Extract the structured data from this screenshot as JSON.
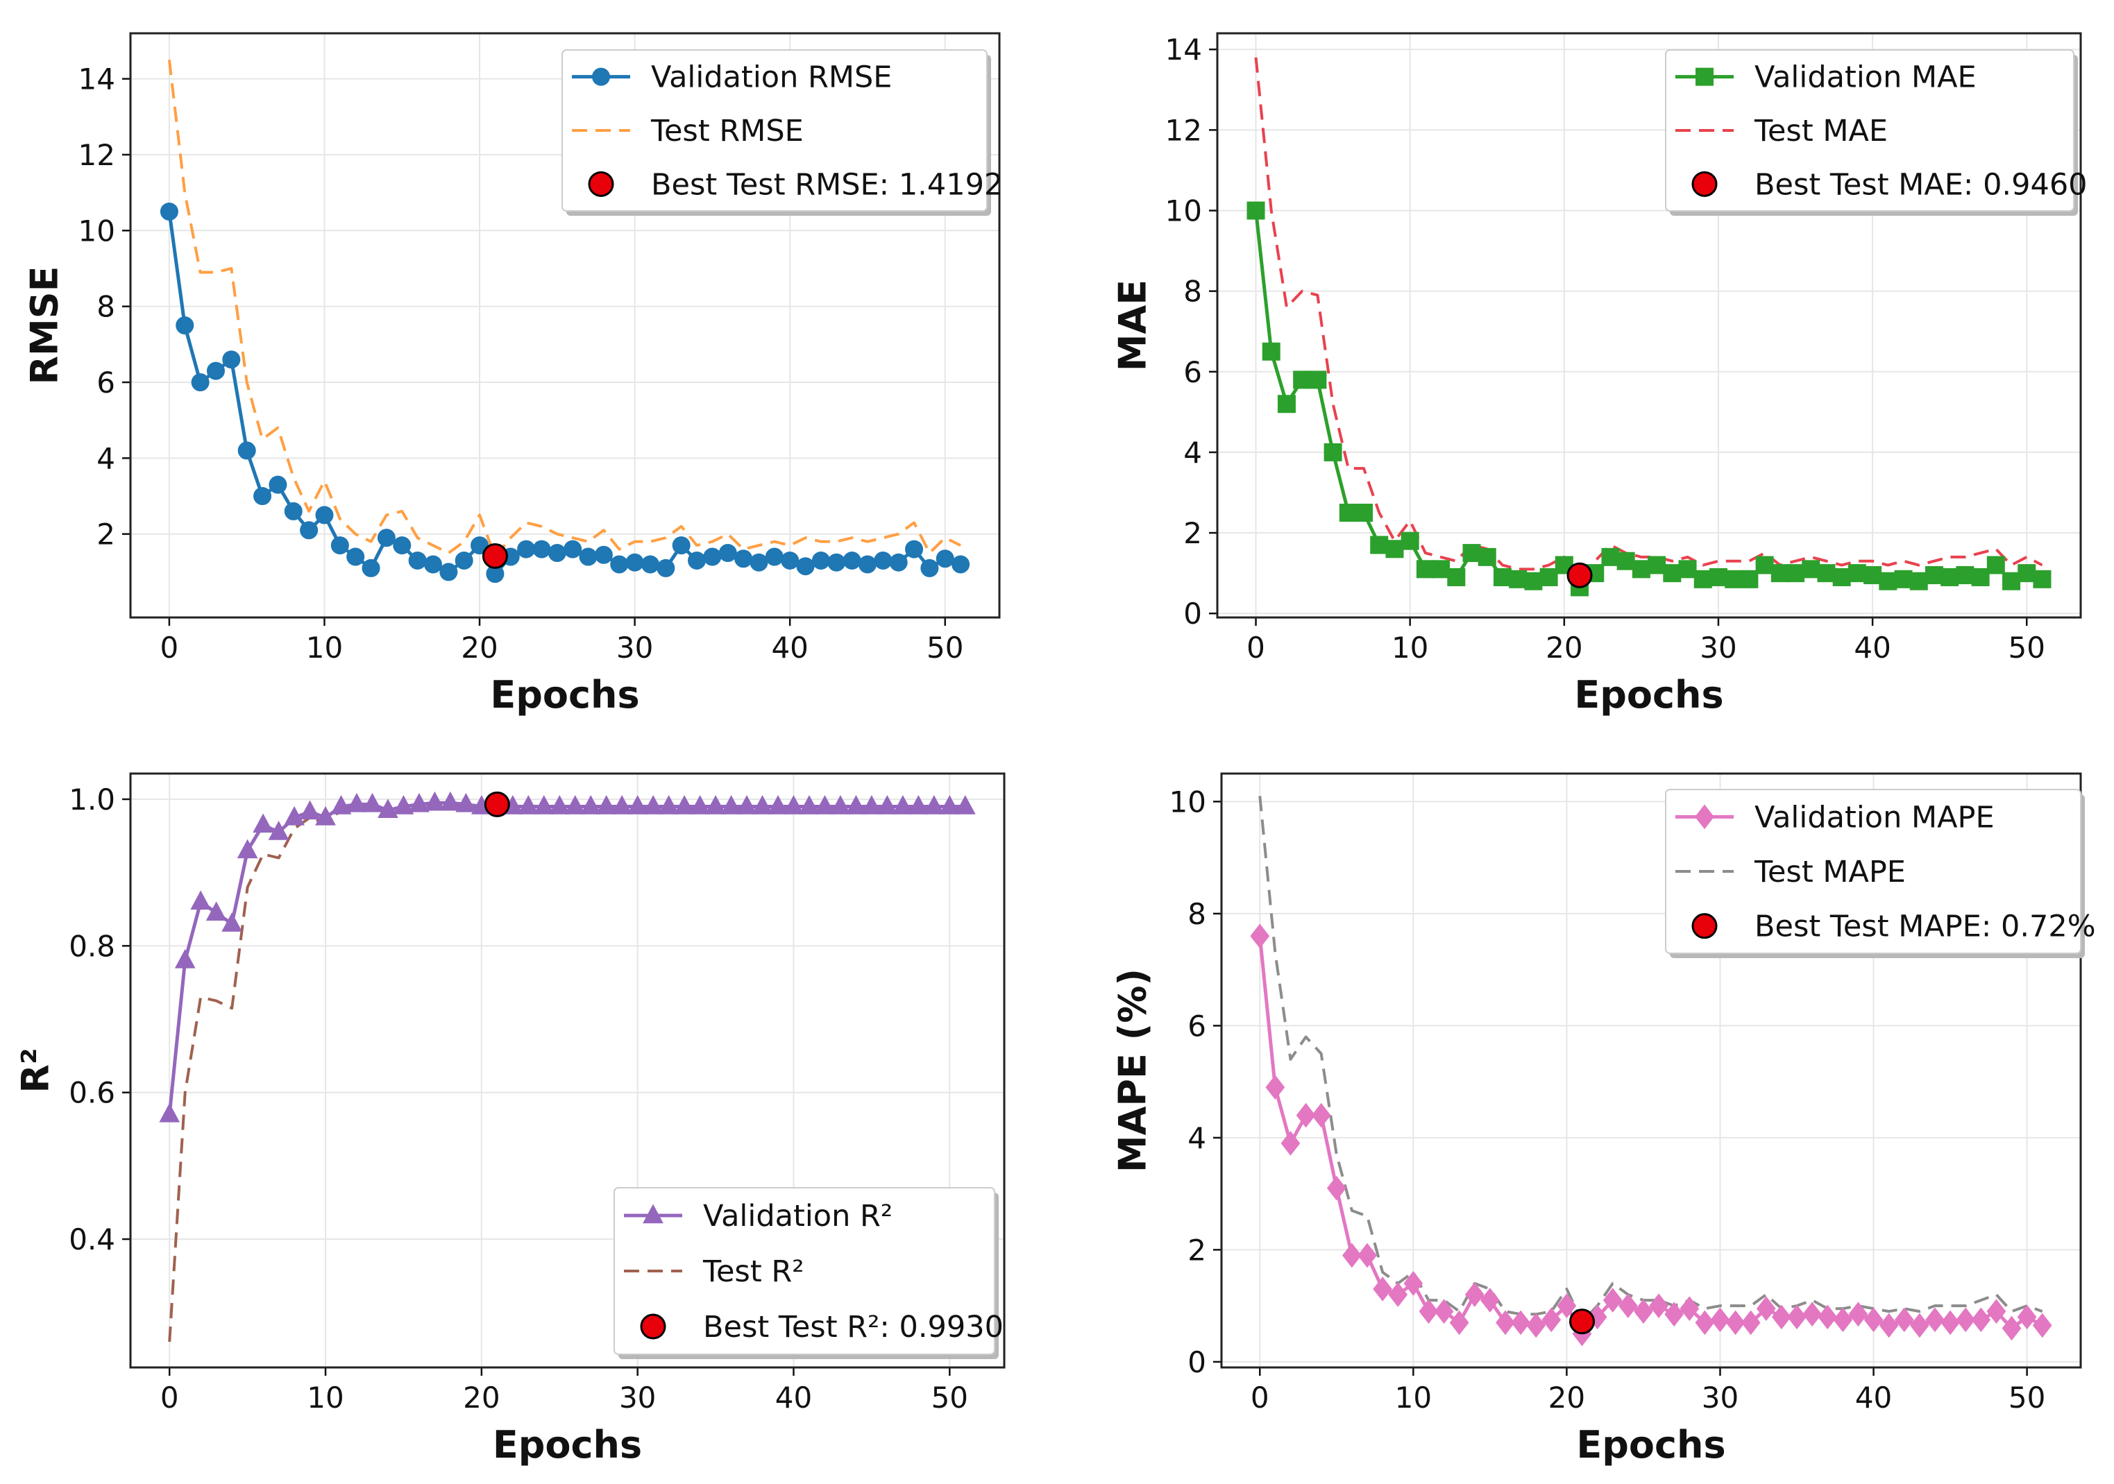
{
  "chart_data": [
    {
      "id": "rmse",
      "type": "line",
      "ylabel": "RMSE",
      "xlabel": "Epochs",
      "xlim": [
        -2.5,
        53.5
      ],
      "ylim": [
        -0.2,
        15.2
      ],
      "xticks": [
        "0",
        "10",
        "20",
        "30",
        "40",
        "50"
      ],
      "yticks": [
        "2",
        "4",
        "6",
        "8",
        "10",
        "12",
        "14"
      ],
      "grid": true,
      "legend_position": "top-right",
      "x": [
        0,
        1,
        2,
        3,
        4,
        5,
        6,
        7,
        8,
        9,
        10,
        11,
        12,
        13,
        14,
        15,
        16,
        17,
        18,
        19,
        20,
        21,
        22,
        23,
        24,
        25,
        26,
        27,
        28,
        29,
        30,
        31,
        32,
        33,
        34,
        35,
        36,
        37,
        38,
        39,
        40,
        41,
        42,
        43,
        44,
        45,
        46,
        47,
        48,
        49,
        50,
        51
      ],
      "series": [
        {
          "name": "Validation RMSE",
          "color": "#1f77b4",
          "style": "solid",
          "marker": "circle",
          "values": [
            10.5,
            7.5,
            6.0,
            6.3,
            6.6,
            4.2,
            3.0,
            3.3,
            2.6,
            2.1,
            2.5,
            1.7,
            1.4,
            1.1,
            1.9,
            1.7,
            1.3,
            1.2,
            1.0,
            1.3,
            1.7,
            0.95,
            1.4,
            1.6,
            1.6,
            1.5,
            1.6,
            1.4,
            1.45,
            1.2,
            1.25,
            1.2,
            1.1,
            1.7,
            1.3,
            1.4,
            1.5,
            1.35,
            1.25,
            1.4,
            1.3,
            1.15,
            1.3,
            1.25,
            1.3,
            1.2,
            1.3,
            1.25,
            1.6,
            1.1,
            1.35,
            1.2
          ]
        },
        {
          "name": "Test RMSE",
          "color": "#ff9f43",
          "style": "dashed",
          "marker": "none",
          "values": [
            14.5,
            11.0,
            8.9,
            8.9,
            9.0,
            6.0,
            4.5,
            4.8,
            3.5,
            2.6,
            3.4,
            2.4,
            2.0,
            1.8,
            2.5,
            2.6,
            1.9,
            1.7,
            1.5,
            1.8,
            2.5,
            1.4,
            1.9,
            2.3,
            2.2,
            2.0,
            1.9,
            1.8,
            2.1,
            1.6,
            1.8,
            1.8,
            1.9,
            2.2,
            1.7,
            1.8,
            2.0,
            1.6,
            1.7,
            1.8,
            1.7,
            1.9,
            1.8,
            1.8,
            1.9,
            1.8,
            1.9,
            2.0,
            2.3,
            1.5,
            1.9,
            1.7
          ]
        }
      ],
      "best": {
        "label": "Best Test RMSE: 1.4192",
        "x": 21,
        "y": 1.4192,
        "color": "#e8000b"
      }
    },
    {
      "id": "mae",
      "type": "line",
      "ylabel": "MAE",
      "xlabel": "Epochs",
      "xlim": [
        -2.5,
        53.5
      ],
      "ylim": [
        -0.1,
        14.4
      ],
      "xticks": [
        "0",
        "10",
        "20",
        "30",
        "40",
        "50"
      ],
      "yticks": [
        "0",
        "2",
        "4",
        "6",
        "8",
        "10",
        "12",
        "14"
      ],
      "grid": true,
      "legend_position": "top-right",
      "x": [
        0,
        1,
        2,
        3,
        4,
        5,
        6,
        7,
        8,
        9,
        10,
        11,
        12,
        13,
        14,
        15,
        16,
        17,
        18,
        19,
        20,
        21,
        22,
        23,
        24,
        25,
        26,
        27,
        28,
        29,
        30,
        31,
        32,
        33,
        34,
        35,
        36,
        37,
        38,
        39,
        40,
        41,
        42,
        43,
        44,
        45,
        46,
        47,
        48,
        49,
        50,
        51
      ],
      "series": [
        {
          "name": "Validation MAE",
          "color": "#2ca02c",
          "style": "solid",
          "marker": "square",
          "values": [
            10.0,
            6.5,
            5.2,
            5.8,
            5.8,
            4.0,
            2.5,
            2.5,
            1.7,
            1.6,
            1.8,
            1.1,
            1.1,
            0.9,
            1.5,
            1.4,
            0.9,
            0.85,
            0.8,
            0.9,
            1.2,
            0.65,
            1.0,
            1.4,
            1.3,
            1.1,
            1.2,
            1.0,
            1.1,
            0.85,
            0.9,
            0.85,
            0.85,
            1.2,
            1.0,
            1.0,
            1.1,
            1.0,
            0.9,
            1.0,
            0.95,
            0.8,
            0.85,
            0.8,
            0.95,
            0.9,
            0.95,
            0.9,
            1.2,
            0.8,
            1.0,
            0.85
          ]
        },
        {
          "name": "Test MAE",
          "color": "#e8424e",
          "style": "dashed",
          "marker": "none",
          "values": [
            13.8,
            10.0,
            7.6,
            8.0,
            7.9,
            5.2,
            3.6,
            3.6,
            2.5,
            1.8,
            2.3,
            1.5,
            1.4,
            1.3,
            1.7,
            1.6,
            1.2,
            1.1,
            1.1,
            1.2,
            1.4,
            0.95,
            1.3,
            1.7,
            1.5,
            1.4,
            1.4,
            1.3,
            1.4,
            1.2,
            1.3,
            1.3,
            1.3,
            1.5,
            1.2,
            1.3,
            1.4,
            1.3,
            1.2,
            1.3,
            1.3,
            1.2,
            1.3,
            1.2,
            1.3,
            1.4,
            1.4,
            1.5,
            1.6,
            1.2,
            1.4,
            1.2
          ]
        }
      ],
      "best": {
        "label": "Best Test MAE: 0.9460",
        "x": 21,
        "y": 0.946,
        "color": "#e8000b"
      }
    },
    {
      "id": "r2",
      "type": "line",
      "ylabel": "R²",
      "xlabel": "Epochs",
      "xlim": [
        -2.5,
        53.5
      ],
      "ylim": [
        0.225,
        1.035
      ],
      "xticks": [
        "0",
        "10",
        "20",
        "30",
        "40",
        "50"
      ],
      "yticks": [
        "0.4",
        "0.6",
        "0.8",
        "1.0"
      ],
      "grid": true,
      "legend_position": "bottom-right",
      "x": [
        0,
        1,
        2,
        3,
        4,
        5,
        6,
        7,
        8,
        9,
        10,
        11,
        12,
        13,
        14,
        15,
        16,
        17,
        18,
        19,
        20,
        21,
        22,
        23,
        24,
        25,
        26,
        27,
        28,
        29,
        30,
        31,
        32,
        33,
        34,
        35,
        36,
        37,
        38,
        39,
        40,
        41,
        42,
        43,
        44,
        45,
        46,
        47,
        48,
        49,
        50,
        51
      ],
      "series": [
        {
          "name": "Validation R²",
          "color": "#9467bd",
          "style": "solid",
          "marker": "triangle",
          "values": [
            0.57,
            0.78,
            0.86,
            0.845,
            0.83,
            0.93,
            0.965,
            0.955,
            0.975,
            0.983,
            0.975,
            0.99,
            0.993,
            0.993,
            0.985,
            0.99,
            0.993,
            0.995,
            0.995,
            0.993,
            0.99,
            0.992,
            0.99,
            0.99,
            0.99,
            0.99,
            0.99,
            0.99,
            0.99,
            0.99,
            0.99,
            0.99,
            0.99,
            0.99,
            0.99,
            0.99,
            0.99,
            0.99,
            0.99,
            0.99,
            0.99,
            0.99,
            0.99,
            0.99,
            0.99,
            0.99,
            0.99,
            0.99,
            0.99,
            0.99,
            0.99,
            0.99
          ]
        },
        {
          "name": "Test R²",
          "color": "#a0614f",
          "style": "dashed",
          "marker": "none",
          "values": [
            0.26,
            0.6,
            0.73,
            0.725,
            0.715,
            0.88,
            0.925,
            0.92,
            0.96,
            0.975,
            0.967,
            0.985,
            0.99,
            0.99,
            0.982,
            0.983,
            0.99,
            0.992,
            0.992,
            0.99,
            0.985,
            0.99,
            0.985,
            0.985,
            0.985,
            0.985,
            0.985,
            0.985,
            0.985,
            0.988,
            0.988,
            0.988,
            0.988,
            0.985,
            0.988,
            0.988,
            0.985,
            0.988,
            0.988,
            0.988,
            0.988,
            0.988,
            0.988,
            0.988,
            0.988,
            0.988,
            0.988,
            0.988,
            0.985,
            0.99,
            0.988,
            0.988
          ]
        }
      ],
      "best": {
        "label": "Best Test R²: 0.9930",
        "x": 21,
        "y": 0.993,
        "color": "#e8000b"
      }
    },
    {
      "id": "mape",
      "type": "line",
      "ylabel": "MAPE (%)",
      "xlabel": "Epochs",
      "xlim": [
        -2.5,
        53.5
      ],
      "ylim": [
        -0.1,
        10.5
      ],
      "xticks": [
        "0",
        "10",
        "20",
        "30",
        "40",
        "50"
      ],
      "yticks": [
        "0",
        "2",
        "4",
        "6",
        "8",
        "10"
      ],
      "grid": true,
      "legend_position": "top-right",
      "x": [
        0,
        1,
        2,
        3,
        4,
        5,
        6,
        7,
        8,
        9,
        10,
        11,
        12,
        13,
        14,
        15,
        16,
        17,
        18,
        19,
        20,
        21,
        22,
        23,
        24,
        25,
        26,
        27,
        28,
        29,
        30,
        31,
        32,
        33,
        34,
        35,
        36,
        37,
        38,
        39,
        40,
        41,
        42,
        43,
        44,
        45,
        46,
        47,
        48,
        49,
        50,
        51
      ],
      "series": [
        {
          "name": "Validation MAPE",
          "color": "#e377c2",
          "style": "solid",
          "marker": "diamond",
          "values": [
            7.6,
            4.9,
            3.9,
            4.4,
            4.4,
            3.1,
            1.9,
            1.9,
            1.3,
            1.2,
            1.4,
            0.9,
            0.9,
            0.7,
            1.2,
            1.1,
            0.7,
            0.7,
            0.65,
            0.75,
            1.0,
            0.5,
            0.8,
            1.1,
            1.0,
            0.9,
            1.0,
            0.85,
            0.95,
            0.7,
            0.75,
            0.7,
            0.7,
            0.95,
            0.8,
            0.8,
            0.85,
            0.8,
            0.75,
            0.85,
            0.75,
            0.65,
            0.75,
            0.65,
            0.75,
            0.7,
            0.75,
            0.75,
            0.9,
            0.6,
            0.8,
            0.65
          ]
        },
        {
          "name": "Test MAPE",
          "color": "#8c8c8c",
          "style": "dashed",
          "marker": "none",
          "values": [
            10.1,
            7.3,
            5.4,
            5.8,
            5.5,
            3.7,
            2.7,
            2.6,
            1.6,
            1.4,
            1.6,
            1.1,
            1.1,
            0.9,
            1.4,
            1.3,
            0.9,
            0.85,
            0.85,
            0.9,
            1.3,
            0.72,
            1.0,
            1.4,
            1.2,
            1.1,
            1.1,
            1.0,
            1.1,
            0.95,
            1.0,
            1.0,
            1.0,
            1.2,
            0.95,
            1.0,
            1.1,
            0.95,
            0.95,
            1.0,
            0.95,
            0.9,
            0.95,
            0.9,
            1.0,
            1.0,
            1.0,
            1.1,
            1.2,
            0.9,
            1.0,
            0.9
          ]
        }
      ],
      "best": {
        "label": "Best Test MAPE: 0.72%",
        "x": 21,
        "y": 0.72,
        "color": "#e8000b"
      }
    }
  ]
}
